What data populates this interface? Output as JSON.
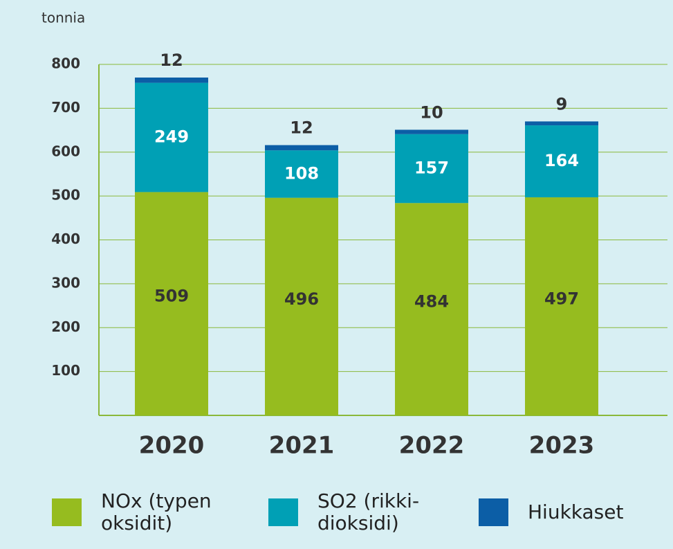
{
  "chart_data": {
    "type": "stacked_bar",
    "y_label": "tonnia",
    "categories": [
      "2020",
      "2021",
      "2022",
      "2023"
    ],
    "series": [
      {
        "name": "NOx (typen oksidit)",
        "color": "#96bc1f",
        "values": [
          509,
          496,
          484,
          497
        ]
      },
      {
        "name": "SO2 (rikki-dioksidi)",
        "color": "#00a0b5",
        "values": [
          249,
          108,
          157,
          164
        ]
      },
      {
        "name": "Hiukkaset",
        "color": "#0c5ea6",
        "values": [
          12,
          12,
          10,
          9
        ]
      }
    ],
    "ylim": [
      0,
      800
    ],
    "yticks": [
      100,
      200,
      300,
      400,
      500,
      600,
      700,
      800
    ],
    "grid": true
  }
}
